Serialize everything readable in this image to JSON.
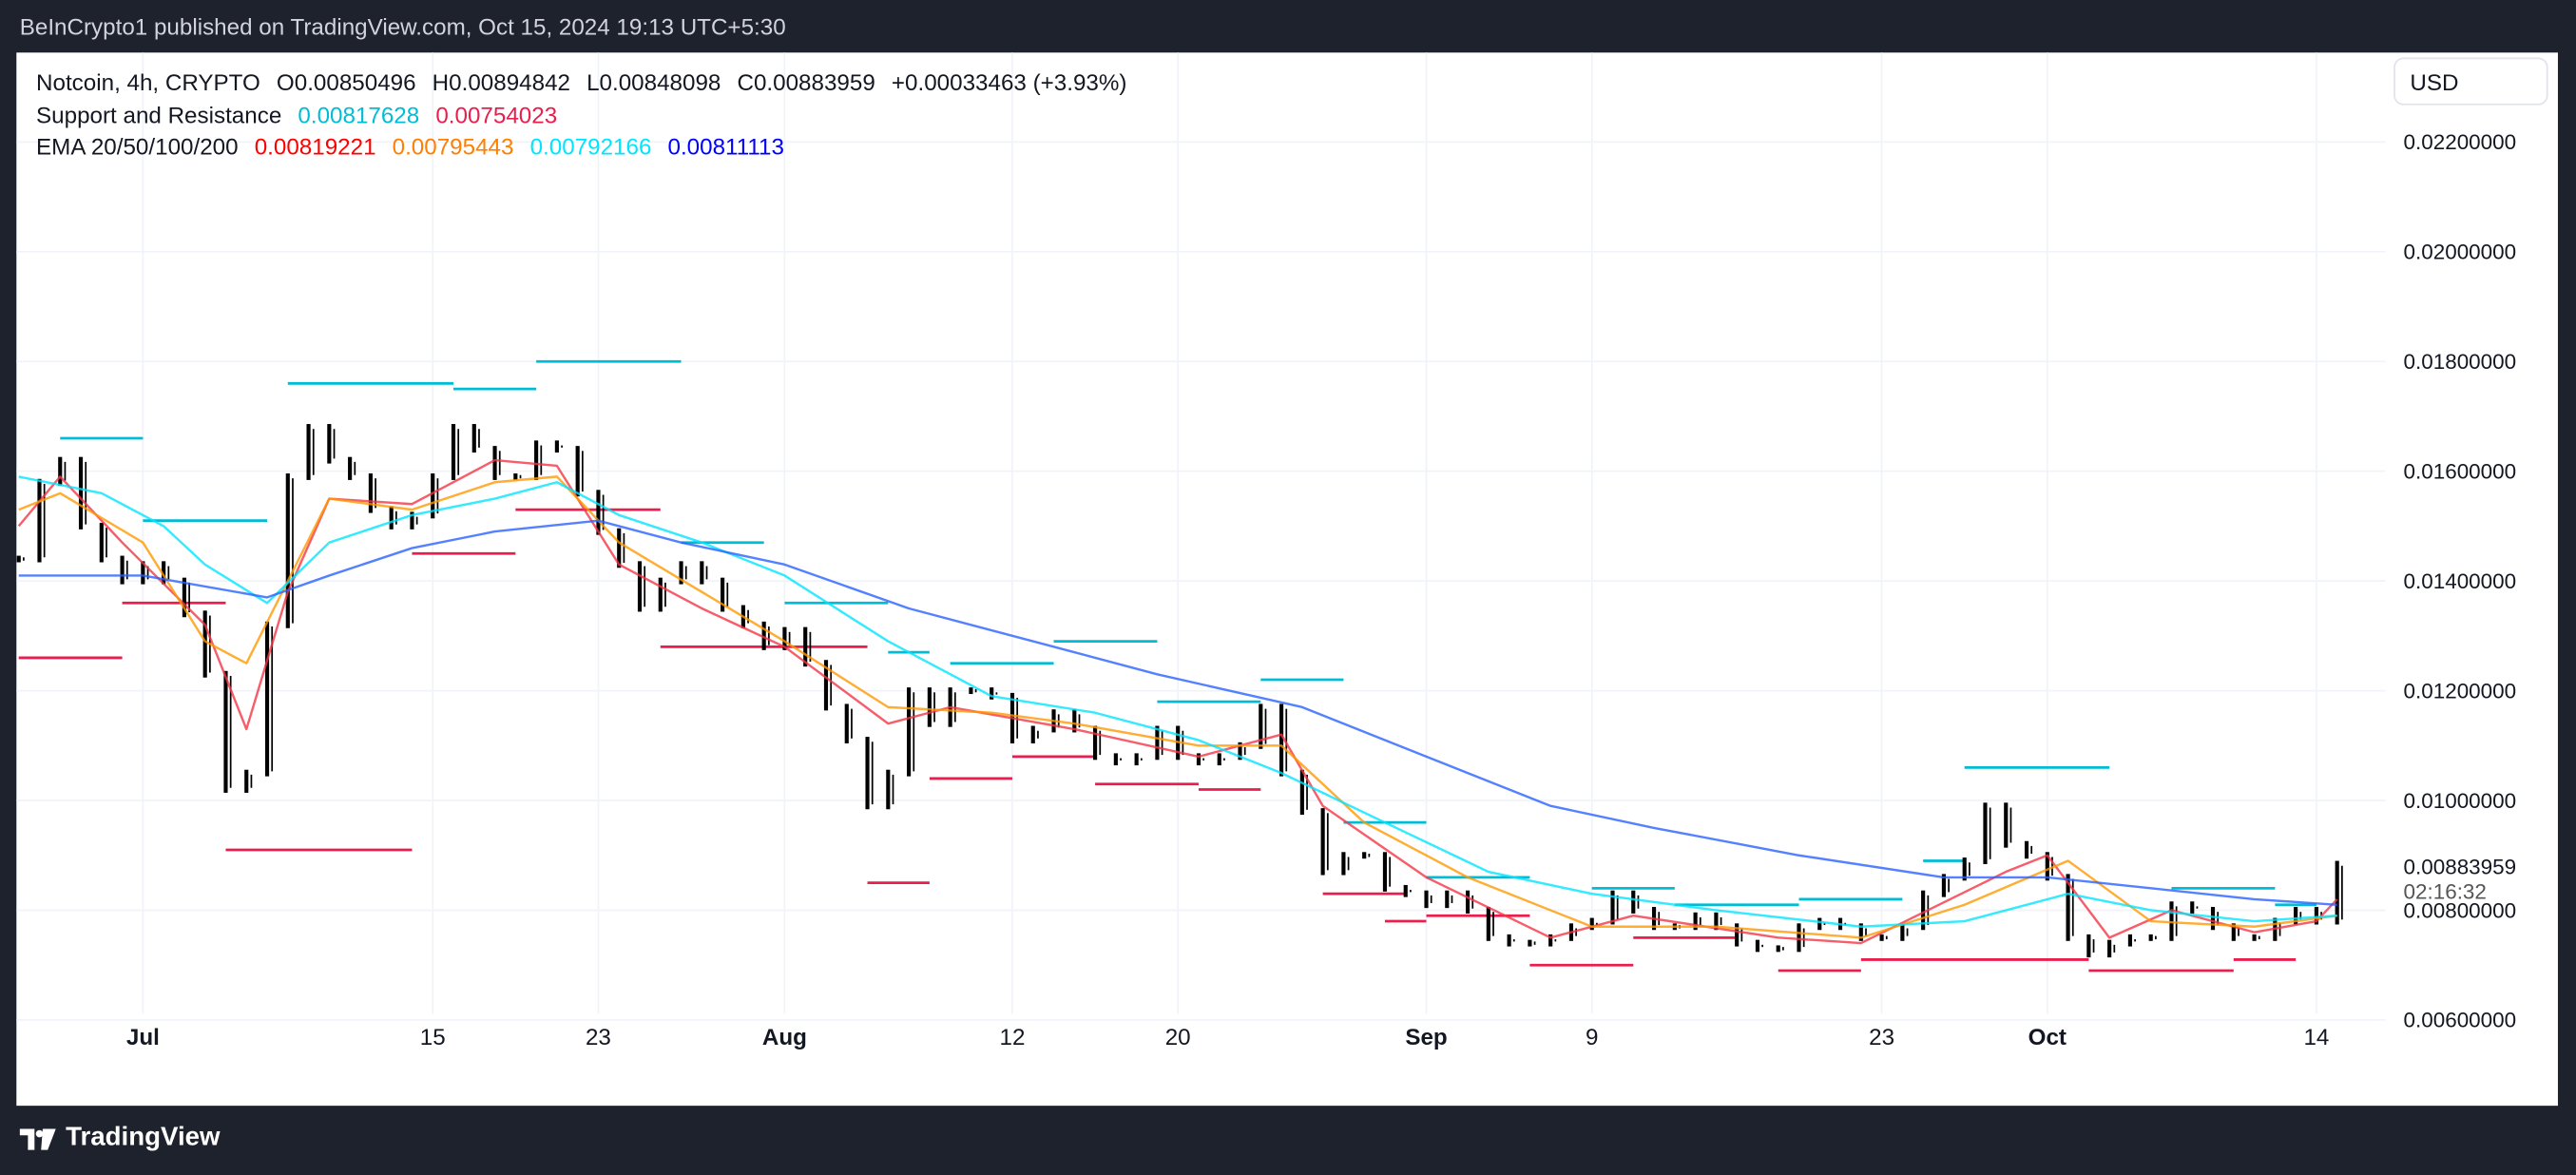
{
  "header": {
    "published": "BeInCrypto1 published on TradingView.com, Oct 15, 2024 19:13 UTC+5:30"
  },
  "legend": {
    "symbol": "Notcoin, 4h, CRYPTO",
    "open": "O0.00850496",
    "high": "H0.00894842",
    "low": "L0.00848098",
    "close": "C0.00883959",
    "change": "+0.00033463 (+3.93%)",
    "sr_name": "Support and Resistance",
    "sr_resistance": "0.00817628",
    "sr_support": "0.00754023",
    "ema_name": "EMA 20/50/100/200",
    "ema20": "0.00819221",
    "ema50": "0.00795443",
    "ema100": "0.00792166",
    "ema200": "0.00811113"
  },
  "currency_button": "USD",
  "current_price": "0.00883959",
  "countdown": "02:16:32",
  "footer": {
    "brand": "TradingView"
  },
  "colors": {
    "ema20": "#f23645",
    "ema50": "#ff9800",
    "ema100": "#00e5ff",
    "ema200": "#2962ff",
    "resistance": "#00bcd4",
    "support": "#e91e4c",
    "bars": "#000000"
  },
  "chart_data": {
    "type": "line",
    "title": "",
    "xlabel": "",
    "ylabel": "",
    "ylim": [
      0.0052,
      0.0233
    ],
    "y_ticks": [
      "0.02200000",
      "0.02000000",
      "0.01800000",
      "0.01600000",
      "0.01400000",
      "0.01200000",
      "0.01000000",
      "0.00800000",
      "0.00600000"
    ],
    "x_ticks": [
      {
        "date": "2024-07-01",
        "label": "Jul",
        "bold": true
      },
      {
        "date": "2024-07-15",
        "label": "15"
      },
      {
        "date": "2024-07-23",
        "label": "23"
      },
      {
        "date": "2024-08-01",
        "label": "Aug",
        "bold": true
      },
      {
        "date": "2024-08-12",
        "label": "12"
      },
      {
        "date": "2024-08-20",
        "label": "20"
      },
      {
        "date": "2024-09-01",
        "label": "Sep",
        "bold": true
      },
      {
        "date": "2024-09-09",
        "label": "9"
      },
      {
        "date": "2024-09-23",
        "label": "23"
      },
      {
        "date": "2024-10-01",
        "label": "Oct",
        "bold": true
      },
      {
        "date": "2024-10-14",
        "label": "14"
      }
    ],
    "grid": true,
    "price": {
      "start_date": "2024-06-25",
      "close": [
        0.0144,
        0.0158,
        0.0162,
        0.015,
        0.0144,
        0.014,
        0.0143,
        0.014,
        0.0134,
        0.0123,
        0.0102,
        0.0105,
        0.0132,
        0.0159,
        0.0168,
        0.0162,
        0.0159,
        0.0153,
        0.015,
        0.0152,
        0.0159,
        0.0168,
        0.0164,
        0.0159,
        0.0159,
        0.0165,
        0.0164,
        0.0156,
        0.0149,
        0.0143,
        0.0135,
        0.014,
        0.0143,
        0.014,
        0.0135,
        0.0132,
        0.0128,
        0.0131,
        0.0125,
        0.0117,
        0.0111,
        0.0099,
        0.0105,
        0.012,
        0.0114,
        0.012,
        0.012,
        0.0119,
        0.0111,
        0.0113,
        0.0116,
        0.0113,
        0.0108,
        0.0107,
        0.0108,
        0.0113,
        0.0108,
        0.0107,
        0.0108,
        0.011,
        0.0117,
        0.0105,
        0.0098,
        0.0087,
        0.009,
        0.009,
        0.0084,
        0.0083,
        0.0081,
        0.0083,
        0.008,
        0.0075,
        0.0074,
        0.0074,
        0.0075,
        0.0077,
        0.0078,
        0.0083,
        0.008,
        0.0077,
        0.0077,
        0.0079,
        0.0077,
        0.0074,
        0.0073,
        0.0073,
        0.0077,
        0.0078,
        0.0077,
        0.0075,
        0.0075,
        0.0077,
        0.0083,
        0.0086,
        0.0089,
        0.0099,
        0.0092,
        0.009,
        0.0086,
        0.0075,
        0.0072,
        0.0074,
        0.0075,
        0.0075,
        0.0081,
        0.008,
        0.0077,
        0.0075,
        0.0075,
        0.0078,
        0.008,
        0.0078,
        0.00883959
      ]
    },
    "series": [
      {
        "name": "EMA 20",
        "color": "#f23645",
        "points": [
          [
            "2024-06-25",
            0.015
          ],
          [
            "2024-06-27",
            0.0159
          ],
          [
            "2024-06-30",
            0.0147
          ],
          [
            "2024-07-04",
            0.0132
          ],
          [
            "2024-07-06",
            0.0113
          ],
          [
            "2024-07-08",
            0.0138
          ],
          [
            "2024-07-10",
            0.0155
          ],
          [
            "2024-07-14",
            0.0154
          ],
          [
            "2024-07-18",
            0.0162
          ],
          [
            "2024-07-21",
            0.0161
          ],
          [
            "2024-07-24",
            0.0143
          ],
          [
            "2024-07-28",
            0.0135
          ],
          [
            "2024-08-01",
            0.0128
          ],
          [
            "2024-08-06",
            0.0114
          ],
          [
            "2024-08-09",
            0.0117
          ],
          [
            "2024-08-15",
            0.0113
          ],
          [
            "2024-08-21",
            0.0108
          ],
          [
            "2024-08-25",
            0.0112
          ],
          [
            "2024-08-27",
            0.0099
          ],
          [
            "2024-09-01",
            0.0086
          ],
          [
            "2024-09-07",
            0.0075
          ],
          [
            "2024-09-11",
            0.0079
          ],
          [
            "2024-09-18",
            0.0075
          ],
          [
            "2024-09-22",
            0.0074
          ],
          [
            "2024-09-29",
            0.0087
          ],
          [
            "2024-10-01",
            0.009
          ],
          [
            "2024-10-04",
            0.0075
          ],
          [
            "2024-10-07",
            0.008
          ],
          [
            "2024-10-11",
            0.0076
          ],
          [
            "2024-10-14",
            0.0078
          ],
          [
            "2024-10-15",
            0.0082
          ]
        ]
      },
      {
        "name": "EMA 50",
        "color": "#ff9800",
        "points": [
          [
            "2024-06-25",
            0.0153
          ],
          [
            "2024-06-27",
            0.0156
          ],
          [
            "2024-07-01",
            0.0147
          ],
          [
            "2024-07-04",
            0.0129
          ],
          [
            "2024-07-06",
            0.0125
          ],
          [
            "2024-07-10",
            0.0155
          ],
          [
            "2024-07-14",
            0.0153
          ],
          [
            "2024-07-18",
            0.0158
          ],
          [
            "2024-07-21",
            0.0159
          ],
          [
            "2024-07-24",
            0.0147
          ],
          [
            "2024-07-28",
            0.0138
          ],
          [
            "2024-08-01",
            0.0129
          ],
          [
            "2024-08-06",
            0.0117
          ],
          [
            "2024-08-11",
            0.0116
          ],
          [
            "2024-08-15",
            0.0114
          ],
          [
            "2024-08-21",
            0.011
          ],
          [
            "2024-08-25",
            0.011
          ],
          [
            "2024-08-29",
            0.0096
          ],
          [
            "2024-09-03",
            0.0086
          ],
          [
            "2024-09-09",
            0.0077
          ],
          [
            "2024-09-15",
            0.0077
          ],
          [
            "2024-09-22",
            0.0075
          ],
          [
            "2024-09-27",
            0.0081
          ],
          [
            "2024-10-02",
            0.0089
          ],
          [
            "2024-10-06",
            0.0078
          ],
          [
            "2024-10-11",
            0.0077
          ],
          [
            "2024-10-15",
            0.0079
          ]
        ]
      },
      {
        "name": "EMA 100",
        "color": "#00e5ff",
        "points": [
          [
            "2024-06-25",
            0.0159
          ],
          [
            "2024-06-29",
            0.0156
          ],
          [
            "2024-07-02",
            0.015
          ],
          [
            "2024-07-04",
            0.0143
          ],
          [
            "2024-07-07",
            0.0136
          ],
          [
            "2024-07-10",
            0.0147
          ],
          [
            "2024-07-14",
            0.0152
          ],
          [
            "2024-07-18",
            0.0155
          ],
          [
            "2024-07-21",
            0.0158
          ],
          [
            "2024-07-24",
            0.0152
          ],
          [
            "2024-07-28",
            0.0147
          ],
          [
            "2024-08-01",
            0.0141
          ],
          [
            "2024-08-06",
            0.0129
          ],
          [
            "2024-08-11",
            0.0119
          ],
          [
            "2024-08-16",
            0.0116
          ],
          [
            "2024-08-21",
            0.0111
          ],
          [
            "2024-08-25",
            0.0105
          ],
          [
            "2024-08-30",
            0.0096
          ],
          [
            "2024-09-04",
            0.0087
          ],
          [
            "2024-09-09",
            0.0083
          ],
          [
            "2024-09-15",
            0.008
          ],
          [
            "2024-09-22",
            0.0077
          ],
          [
            "2024-09-27",
            0.0078
          ],
          [
            "2024-10-02",
            0.0083
          ],
          [
            "2024-10-06",
            0.008
          ],
          [
            "2024-10-11",
            0.0078
          ],
          [
            "2024-10-15",
            0.0079
          ]
        ]
      },
      {
        "name": "EMA 200",
        "color": "#2962ff",
        "points": [
          [
            "2024-06-25",
            0.0141
          ],
          [
            "2024-07-01",
            0.0141
          ],
          [
            "2024-07-07",
            0.0137
          ],
          [
            "2024-07-10",
            0.0141
          ],
          [
            "2024-07-14",
            0.0146
          ],
          [
            "2024-07-18",
            0.0149
          ],
          [
            "2024-07-23",
            0.0151
          ],
          [
            "2024-07-27",
            0.0147
          ],
          [
            "2024-08-01",
            0.0143
          ],
          [
            "2024-08-07",
            0.0135
          ],
          [
            "2024-08-13",
            0.0129
          ],
          [
            "2024-08-19",
            0.0123
          ],
          [
            "2024-08-26",
            0.0117
          ],
          [
            "2024-09-01",
            0.0108
          ],
          [
            "2024-09-07",
            0.0099
          ],
          [
            "2024-09-12",
            0.0095
          ],
          [
            "2024-09-19",
            0.009
          ],
          [
            "2024-09-26",
            0.0086
          ],
          [
            "2024-10-01",
            0.0086
          ],
          [
            "2024-10-06",
            0.0084
          ],
          [
            "2024-10-11",
            0.0082
          ],
          [
            "2024-10-15",
            0.0081
          ]
        ]
      }
    ],
    "resistance_levels": [
      [
        "2024-06-27",
        "2024-07-01",
        0.0166
      ],
      [
        "2024-07-01",
        "2024-07-07",
        0.0151
      ],
      [
        "2024-07-08",
        "2024-07-16",
        0.0176
      ],
      [
        "2024-07-16",
        "2024-07-20",
        0.0175
      ],
      [
        "2024-07-20",
        "2024-07-27",
        0.018
      ],
      [
        "2024-07-27",
        "2024-07-31",
        0.0147
      ],
      [
        "2024-08-01",
        "2024-08-06",
        0.0136
      ],
      [
        "2024-08-06",
        "2024-08-08",
        0.0127
      ],
      [
        "2024-08-09",
        "2024-08-14",
        0.0125
      ],
      [
        "2024-08-14",
        "2024-08-19",
        0.0129
      ],
      [
        "2024-08-19",
        "2024-08-24",
        0.0118
      ],
      [
        "2024-08-24",
        "2024-08-28",
        0.0122
      ],
      [
        "2024-08-28",
        "2024-09-01",
        0.0096
      ],
      [
        "2024-09-01",
        "2024-09-06",
        0.0086
      ],
      [
        "2024-09-09",
        "2024-09-13",
        0.0084
      ],
      [
        "2024-09-13",
        "2024-09-19",
        0.0081
      ],
      [
        "2024-09-19",
        "2024-09-24",
        0.0082
      ],
      [
        "2024-09-25",
        "2024-09-27",
        0.0089
      ],
      [
        "2024-09-27",
        "2024-10-04",
        0.0106
      ],
      [
        "2024-10-07",
        "2024-10-12",
        0.0084
      ],
      [
        "2024-10-12",
        "2024-10-14",
        0.0081
      ]
    ],
    "support_levels": [
      [
        "2024-06-25",
        "2024-06-30",
        0.0126
      ],
      [
        "2024-06-30",
        "2024-07-05",
        0.0136
      ],
      [
        "2024-07-05",
        "2024-07-14",
        0.0091
      ],
      [
        "2024-07-14",
        "2024-07-19",
        0.0145
      ],
      [
        "2024-07-19",
        "2024-07-26",
        0.0153
      ],
      [
        "2024-07-26",
        "2024-08-05",
        0.0128
      ],
      [
        "2024-08-05",
        "2024-08-08",
        0.0085
      ],
      [
        "2024-08-08",
        "2024-08-12",
        0.0104
      ],
      [
        "2024-08-12",
        "2024-08-16",
        0.0108
      ],
      [
        "2024-08-16",
        "2024-08-21",
        0.0103
      ],
      [
        "2024-08-21",
        "2024-08-24",
        0.0102
      ],
      [
        "2024-08-27",
        "2024-08-31",
        0.0083
      ],
      [
        "2024-08-30",
        "2024-09-01",
        0.0078
      ],
      [
        "2024-09-01",
        "2024-09-06",
        0.0079
      ],
      [
        "2024-09-06",
        "2024-09-11",
        0.007
      ],
      [
        "2024-09-11",
        "2024-09-16",
        0.0075
      ],
      [
        "2024-09-18",
        "2024-09-22",
        0.0069
      ],
      [
        "2024-09-22",
        "2024-10-03",
        0.0071
      ],
      [
        "2024-10-03",
        "2024-10-10",
        0.0069
      ],
      [
        "2024-10-10",
        "2024-10-13",
        0.0071
      ]
    ]
  }
}
